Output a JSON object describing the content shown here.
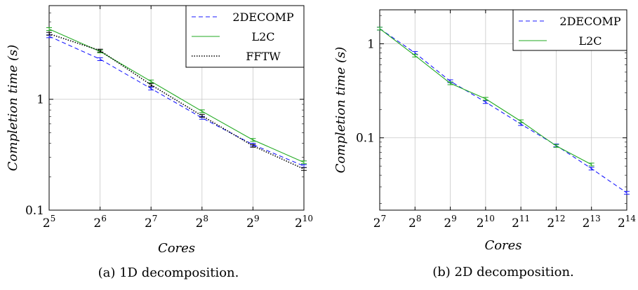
{
  "chart_data": [
    {
      "type": "line",
      "caption": "(a) 1D decomposition.",
      "xlabel": "Cores",
      "ylabel": "Completion time (s)",
      "yscale": "log",
      "xscale": "log2",
      "xlim": [
        32,
        1024
      ],
      "ylim": [
        0.1,
        7
      ],
      "x_ticks": [
        {
          "base": "2",
          "exp": "5"
        },
        {
          "base": "2",
          "exp": "6"
        },
        {
          "base": "2",
          "exp": "7"
        },
        {
          "base": "2",
          "exp": "8"
        },
        {
          "base": "2",
          "exp": "9"
        },
        {
          "base": "2",
          "exp": "10"
        }
      ],
      "y_ticks": [
        {
          "value": 0.1,
          "label": "0.1"
        },
        {
          "value": 1,
          "label": "1"
        }
      ],
      "grid": true,
      "legend_position": "top-right",
      "series": [
        {
          "name": "2DECOMP",
          "color": "#1a1aff",
          "dash": "6,4",
          "x": [
            32,
            64,
            128,
            256,
            512,
            1024
          ],
          "y": [
            3.7,
            2.3,
            1.25,
            0.68,
            0.39,
            0.25
          ]
        },
        {
          "name": "L2C",
          "color": "#22aa22",
          "dash": "",
          "x": [
            32,
            64,
            128,
            256,
            512,
            1024
          ],
          "y": [
            4.3,
            2.7,
            1.45,
            0.78,
            0.43,
            0.27
          ]
        },
        {
          "name": "FFTW",
          "color": "#000000",
          "dash": "1.5,2",
          "x": [
            32,
            64,
            128,
            256,
            512,
            1024
          ],
          "y": [
            3.9,
            2.75,
            1.35,
            0.71,
            0.38,
            0.235
          ]
        }
      ]
    },
    {
      "type": "line",
      "caption": "(b) 2D decomposition.",
      "xlabel": "Cores",
      "ylabel": "Completion time (s)",
      "yscale": "log",
      "xscale": "log2",
      "xlim": [
        128,
        16384
      ],
      "ylim": [
        0.017,
        2.3
      ],
      "x_ticks": [
        {
          "base": "2",
          "exp": "7"
        },
        {
          "base": "2",
          "exp": "8"
        },
        {
          "base": "2",
          "exp": "9"
        },
        {
          "base": "2",
          "exp": "10"
        },
        {
          "base": "2",
          "exp": "11"
        },
        {
          "base": "2",
          "exp": "12"
        },
        {
          "base": "2",
          "exp": "13"
        },
        {
          "base": "2",
          "exp": "14"
        }
      ],
      "y_ticks": [
        {
          "value": 0.1,
          "label": "0.1"
        },
        {
          "value": 1,
          "label": "1"
        }
      ],
      "grid": true,
      "legend_position": "top-right",
      "series": [
        {
          "name": "2DECOMP",
          "color": "#1a1aff",
          "dash": "6,4",
          "x": [
            128,
            256,
            512,
            1024,
            2048,
            4096,
            8192,
            16384
          ],
          "y": [
            1.45,
            0.8,
            0.4,
            0.24,
            0.14,
            0.083,
            0.047,
            0.026
          ]
        },
        {
          "name": "L2C",
          "color": "#22aa22",
          "dash": "",
          "x": [
            128,
            256,
            512,
            1024,
            2048,
            4096,
            8192
          ],
          "y": [
            1.45,
            0.75,
            0.38,
            0.26,
            0.15,
            0.082,
            0.052
          ]
        }
      ]
    }
  ]
}
